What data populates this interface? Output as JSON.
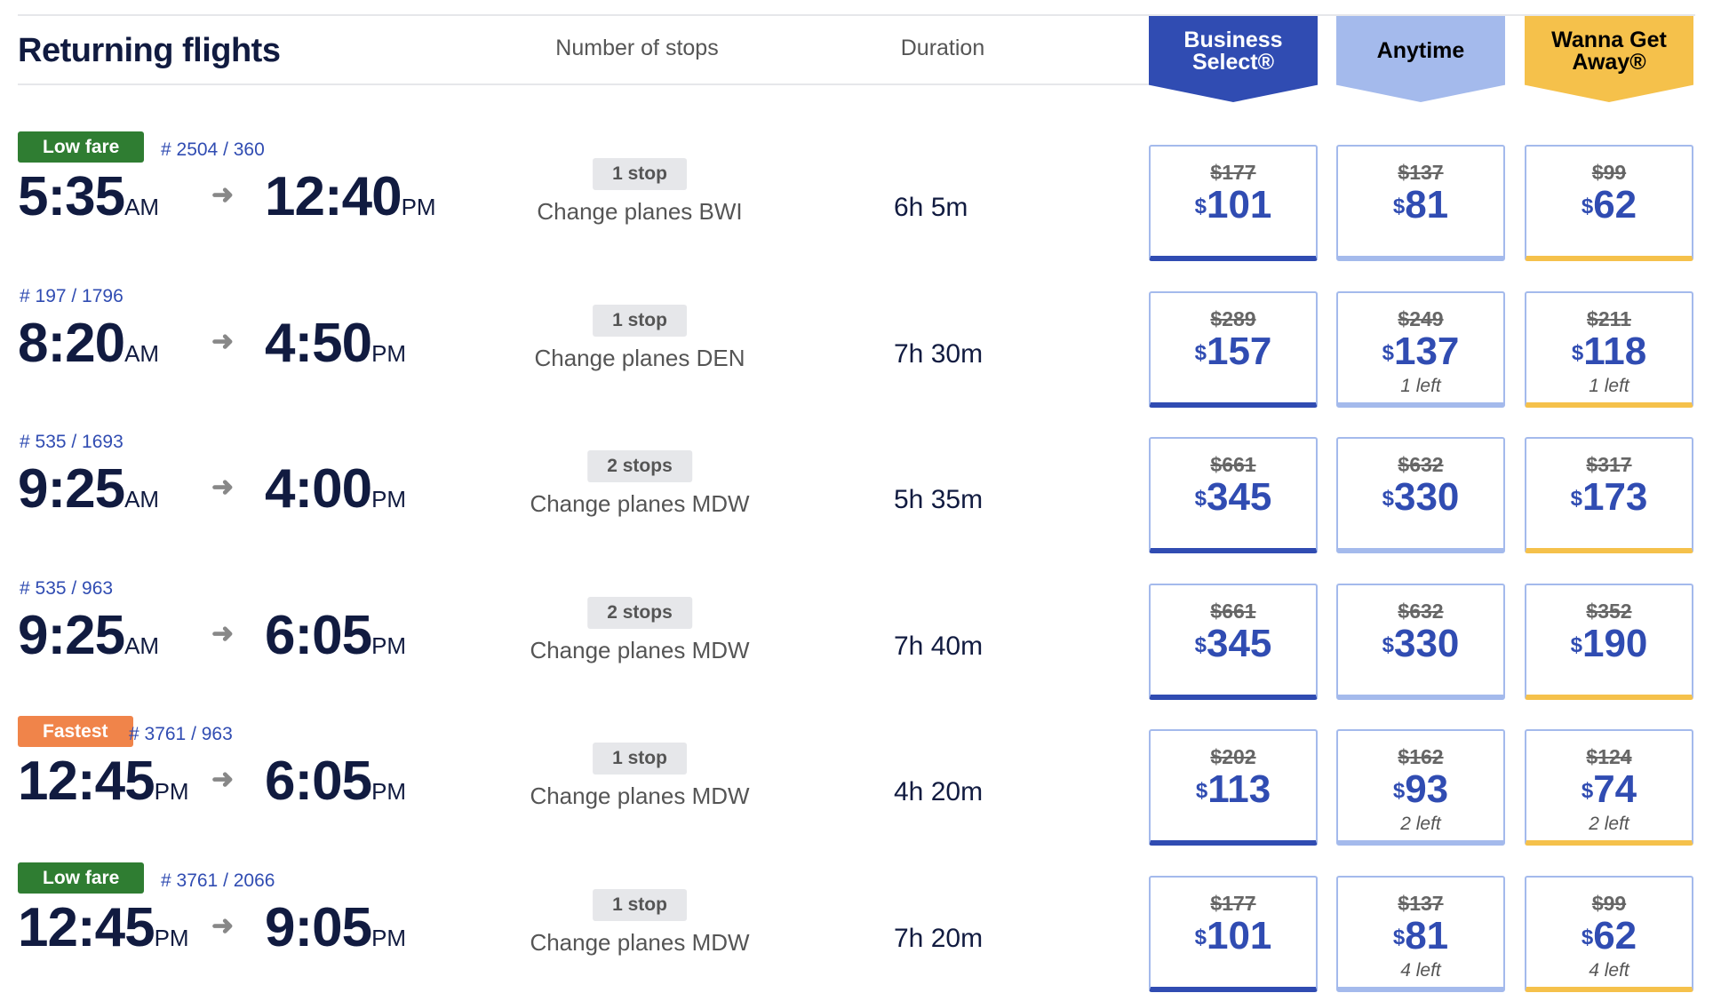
{
  "header": {
    "title": "Returning flights",
    "stops_label": "Number of stops",
    "duration_label": "Duration"
  },
  "fares": [
    {
      "label_line1": "Business",
      "label_line2": "Select®",
      "color": "#304cb2",
      "text_color": "#ffffff"
    },
    {
      "label_line1": "Anytime",
      "label_line2": "",
      "color": "#a4baec",
      "text_color": "#000000"
    },
    {
      "label_line1": "Wanna Get",
      "label_line2": "Away®",
      "color": "#f5c14b",
      "text_color": "#000000"
    }
  ],
  "flights": [
    {
      "badge": "Low fare",
      "badge_color": "#2f7d32",
      "flight_numbers": "# 2504 / 360",
      "depart": "5:35",
      "depart_ampm": "AM",
      "arrive": "12:40",
      "arrive_ampm": "PM",
      "stops": "1 stop",
      "change": "Change planes BWI",
      "duration": "6h 5m",
      "prices": [
        {
          "old": "$177",
          "new": "101",
          "left": ""
        },
        {
          "old": "$137",
          "new": "81",
          "left": ""
        },
        {
          "old": "$99",
          "new": "62",
          "left": ""
        }
      ]
    },
    {
      "badge": "",
      "badge_color": "",
      "flight_numbers": "# 197 / 1796",
      "depart": "8:20",
      "depart_ampm": "AM",
      "arrive": "4:50",
      "arrive_ampm": "PM",
      "stops": "1 stop",
      "change": "Change planes DEN",
      "duration": "7h 30m",
      "prices": [
        {
          "old": "$289",
          "new": "157",
          "left": ""
        },
        {
          "old": "$249",
          "new": "137",
          "left": "1 left"
        },
        {
          "old": "$211",
          "new": "118",
          "left": "1 left"
        }
      ]
    },
    {
      "badge": "",
      "badge_color": "",
      "flight_numbers": "# 535 / 1693",
      "depart": "9:25",
      "depart_ampm": "AM",
      "arrive": "4:00",
      "arrive_ampm": "PM",
      "stops": "2 stops",
      "change": "Change planes MDW",
      "duration": "5h 35m",
      "prices": [
        {
          "old": "$661",
          "new": "345",
          "left": ""
        },
        {
          "old": "$632",
          "new": "330",
          "left": ""
        },
        {
          "old": "$317",
          "new": "173",
          "left": ""
        }
      ]
    },
    {
      "badge": "",
      "badge_color": "",
      "flight_numbers": "# 535 / 963",
      "depart": "9:25",
      "depart_ampm": "AM",
      "arrive": "6:05",
      "arrive_ampm": "PM",
      "stops": "2 stops",
      "change": "Change planes MDW",
      "duration": "7h 40m",
      "prices": [
        {
          "old": "$661",
          "new": "345",
          "left": ""
        },
        {
          "old": "$632",
          "new": "330",
          "left": ""
        },
        {
          "old": "$352",
          "new": "190",
          "left": ""
        }
      ]
    },
    {
      "badge": "Fastest",
      "badge_color": "#f0844a",
      "flight_numbers": "# 3761 / 963",
      "depart": "12:45",
      "depart_ampm": "PM",
      "arrive": "6:05",
      "arrive_ampm": "PM",
      "stops": "1 stop",
      "change": "Change planes MDW",
      "duration": "4h 20m",
      "prices": [
        {
          "old": "$202",
          "new": "113",
          "left": ""
        },
        {
          "old": "$162",
          "new": "93",
          "left": "2 left"
        },
        {
          "old": "$124",
          "new": "74",
          "left": "2 left"
        }
      ]
    },
    {
      "badge": "Low fare",
      "badge_color": "#2f7d32",
      "flight_numbers": "# 3761 / 2066",
      "depart": "12:45",
      "depart_ampm": "PM",
      "arrive": "9:05",
      "arrive_ampm": "PM",
      "stops": "1 stop",
      "change": "Change planes MDW",
      "duration": "7h 20m",
      "prices": [
        {
          "old": "$177",
          "new": "101",
          "left": ""
        },
        {
          "old": "$137",
          "new": "81",
          "left": "4 left"
        },
        {
          "old": "$99",
          "new": "62",
          "left": "4 left"
        }
      ]
    }
  ]
}
